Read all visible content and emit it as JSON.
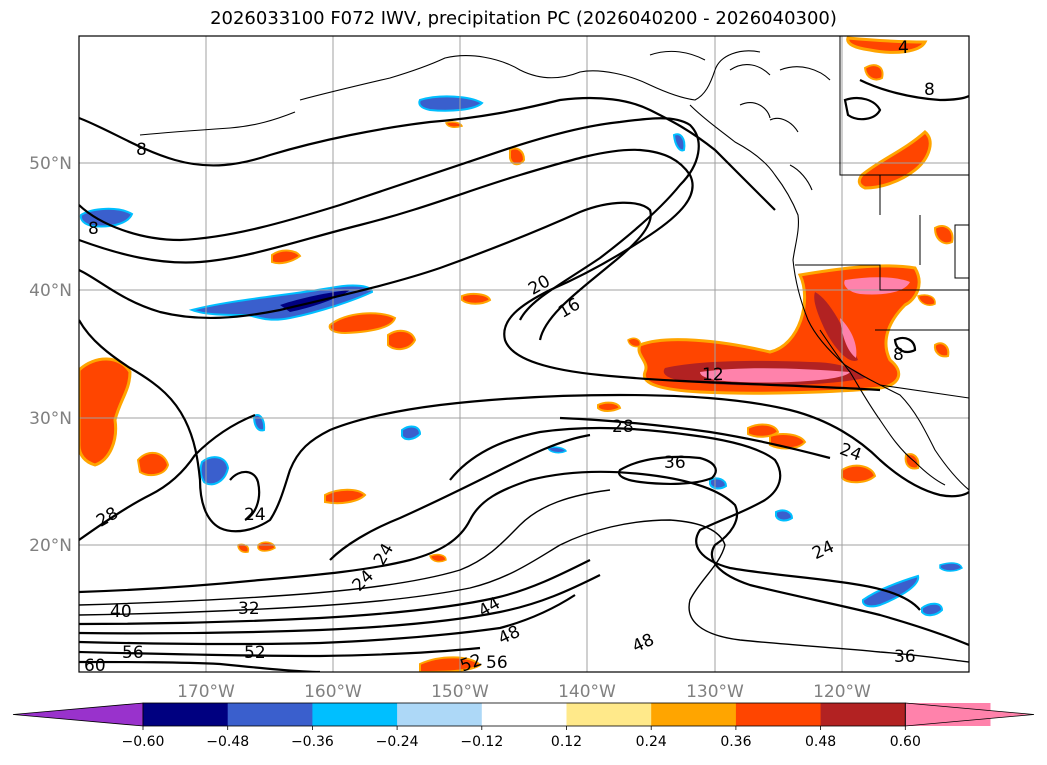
{
  "title": "2026033100 F072 IWV, precipitation PC (2026040200 - 2026040300)",
  "map": {
    "lon_labels": [
      "170°W",
      "160°W",
      "150°W",
      "140°W",
      "130°W",
      "120°W"
    ],
    "lat_labels": [
      "50°N",
      "40°N",
      "30°N",
      "20°N"
    ],
    "contour_labels": [
      "8",
      "8",
      "4",
      "8",
      "20",
      "16",
      "12",
      "8",
      "28",
      "36",
      "24",
      "28",
      "24",
      "24",
      "24",
      "24",
      "40",
      "32",
      "56",
      "52",
      "60",
      "44",
      "48",
      "48",
      "52",
      "56",
      "36"
    ]
  },
  "colorbar": {
    "ticks": [
      "−0.60",
      "−0.48",
      "−0.36",
      "−0.24",
      "−0.12",
      "0.12",
      "0.24",
      "0.36",
      "0.48",
      "0.60"
    ],
    "colors": [
      "#9932cc",
      "#000080",
      "#3a5fcd",
      "#00bfff",
      "#add8f7",
      "#ffffff",
      "#ffe98a",
      "#ffa500",
      "#ff4500",
      "#b22222",
      "#ff82ab",
      "#ff82ab"
    ]
  }
}
